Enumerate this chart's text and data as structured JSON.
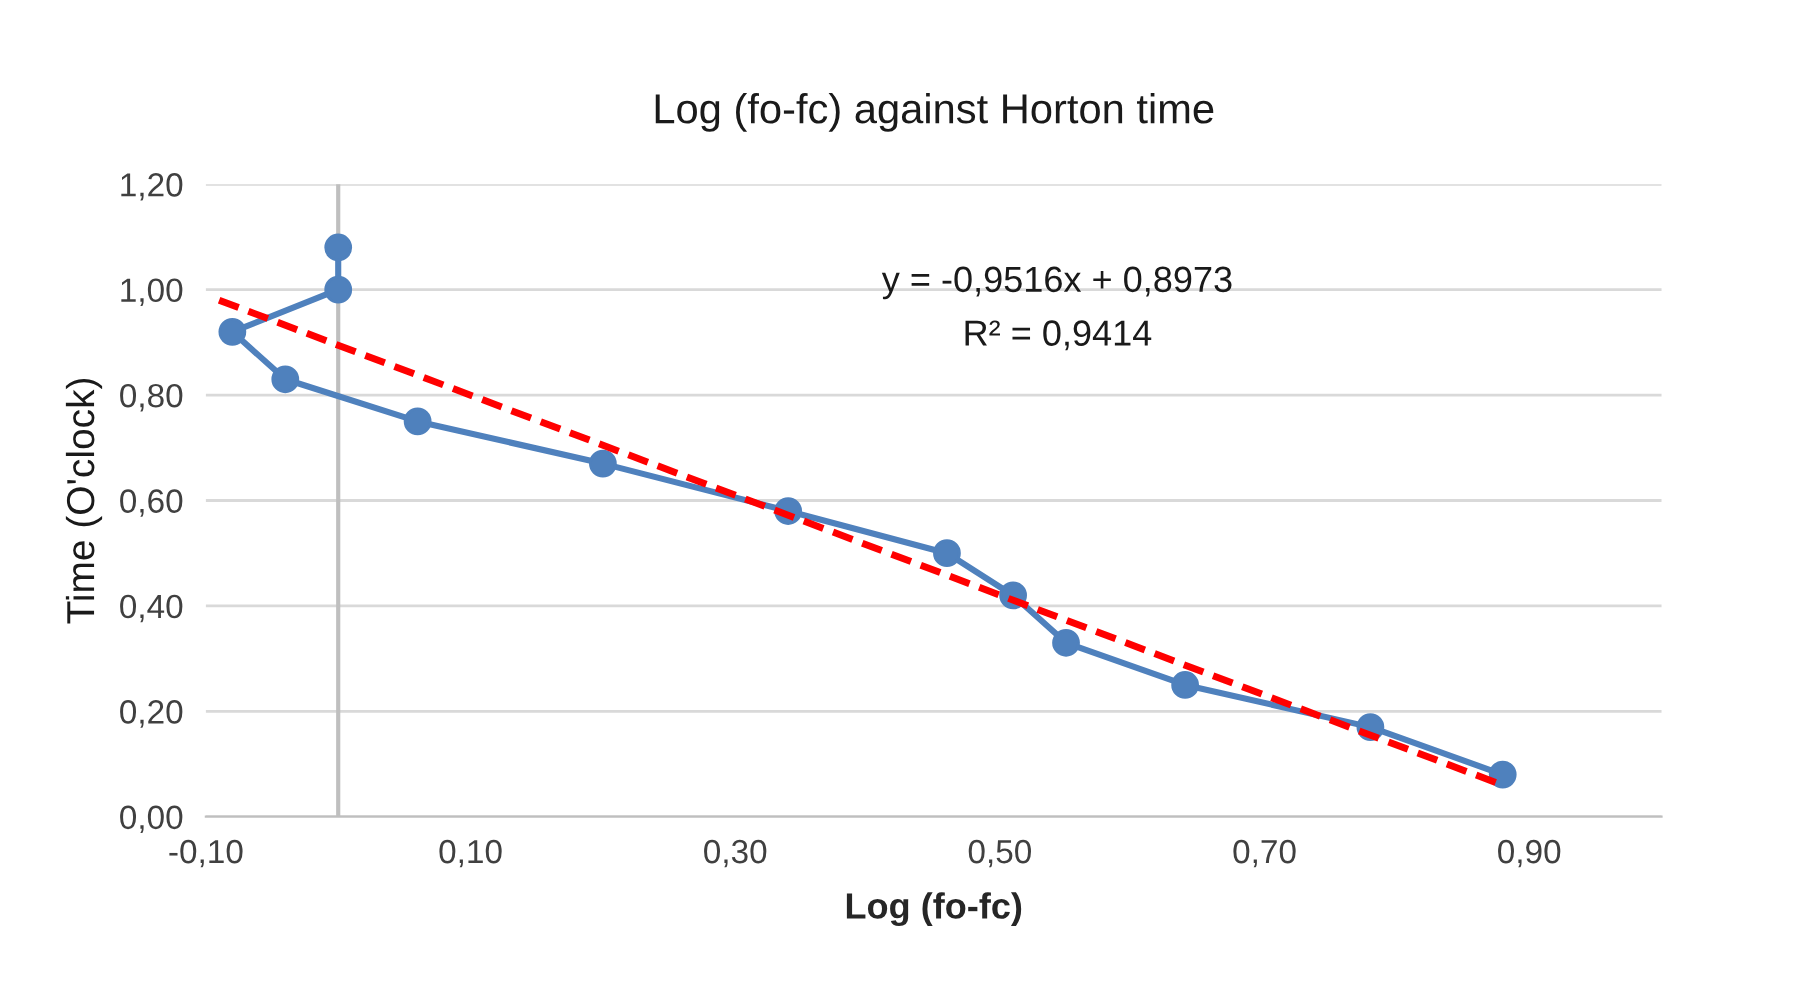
{
  "chart_data": {
    "type": "line",
    "title": "Log (fo-fc) against Horton time",
    "xlabel": "Log (fo-fc)",
    "ylabel": "Time (O'clock)",
    "series": [
      {
        "color": "#4f81bd",
        "marker": "circle",
        "line_style": "solid",
        "x": [
          0.0,
          0.0,
          -0.08,
          -0.04,
          0.06,
          0.2,
          0.34,
          0.46,
          0.51,
          0.55,
          0.64,
          0.78,
          0.88
        ],
        "values": [
          1.08,
          1.0,
          0.92,
          0.83,
          0.75,
          0.67,
          0.58,
          0.5,
          0.42,
          0.33,
          0.25,
          0.17,
          0.08
        ]
      },
      {
        "type": "line",
        "color": "#ff0000",
        "marker": "none",
        "line_style": "dashed",
        "x": [
          -0.09,
          0.88
        ],
        "values": [
          0.98,
          0.06
        ]
      }
    ],
    "xlim": [
      -0.1,
      1.0
    ],
    "xticks": [
      {
        "value": -0.1,
        "label": "-0,10"
      },
      {
        "value": 0.1,
        "label": "0,10"
      },
      {
        "value": 0.3,
        "label": "0,30"
      },
      {
        "value": 0.5,
        "label": "0,50"
      },
      {
        "value": 0.7,
        "label": "0,70"
      },
      {
        "value": 0.9,
        "label": "0,90"
      }
    ],
    "ylim": [
      0,
      1.2
    ],
    "yticks": [
      {
        "value": 0,
        "label": "0,00"
      },
      {
        "value": 0.2,
        "label": "0,20"
      },
      {
        "value": 0.4,
        "label": "0,40"
      },
      {
        "value": 0.6,
        "label": "0,60"
      },
      {
        "value": 0.8,
        "label": "0,80"
      },
      {
        "value": 1.0,
        "label": "1,00"
      },
      {
        "value": 1.2,
        "label": "1,20"
      }
    ],
    "ref_lines": [
      {
        "axis": "x",
        "value": 0,
        "color": "#bfbfbf"
      }
    ],
    "annotations": [
      "y = -0,9516x + 0,8973",
      "R² = 0,9414"
    ],
    "grid": "y",
    "legend": false
  }
}
